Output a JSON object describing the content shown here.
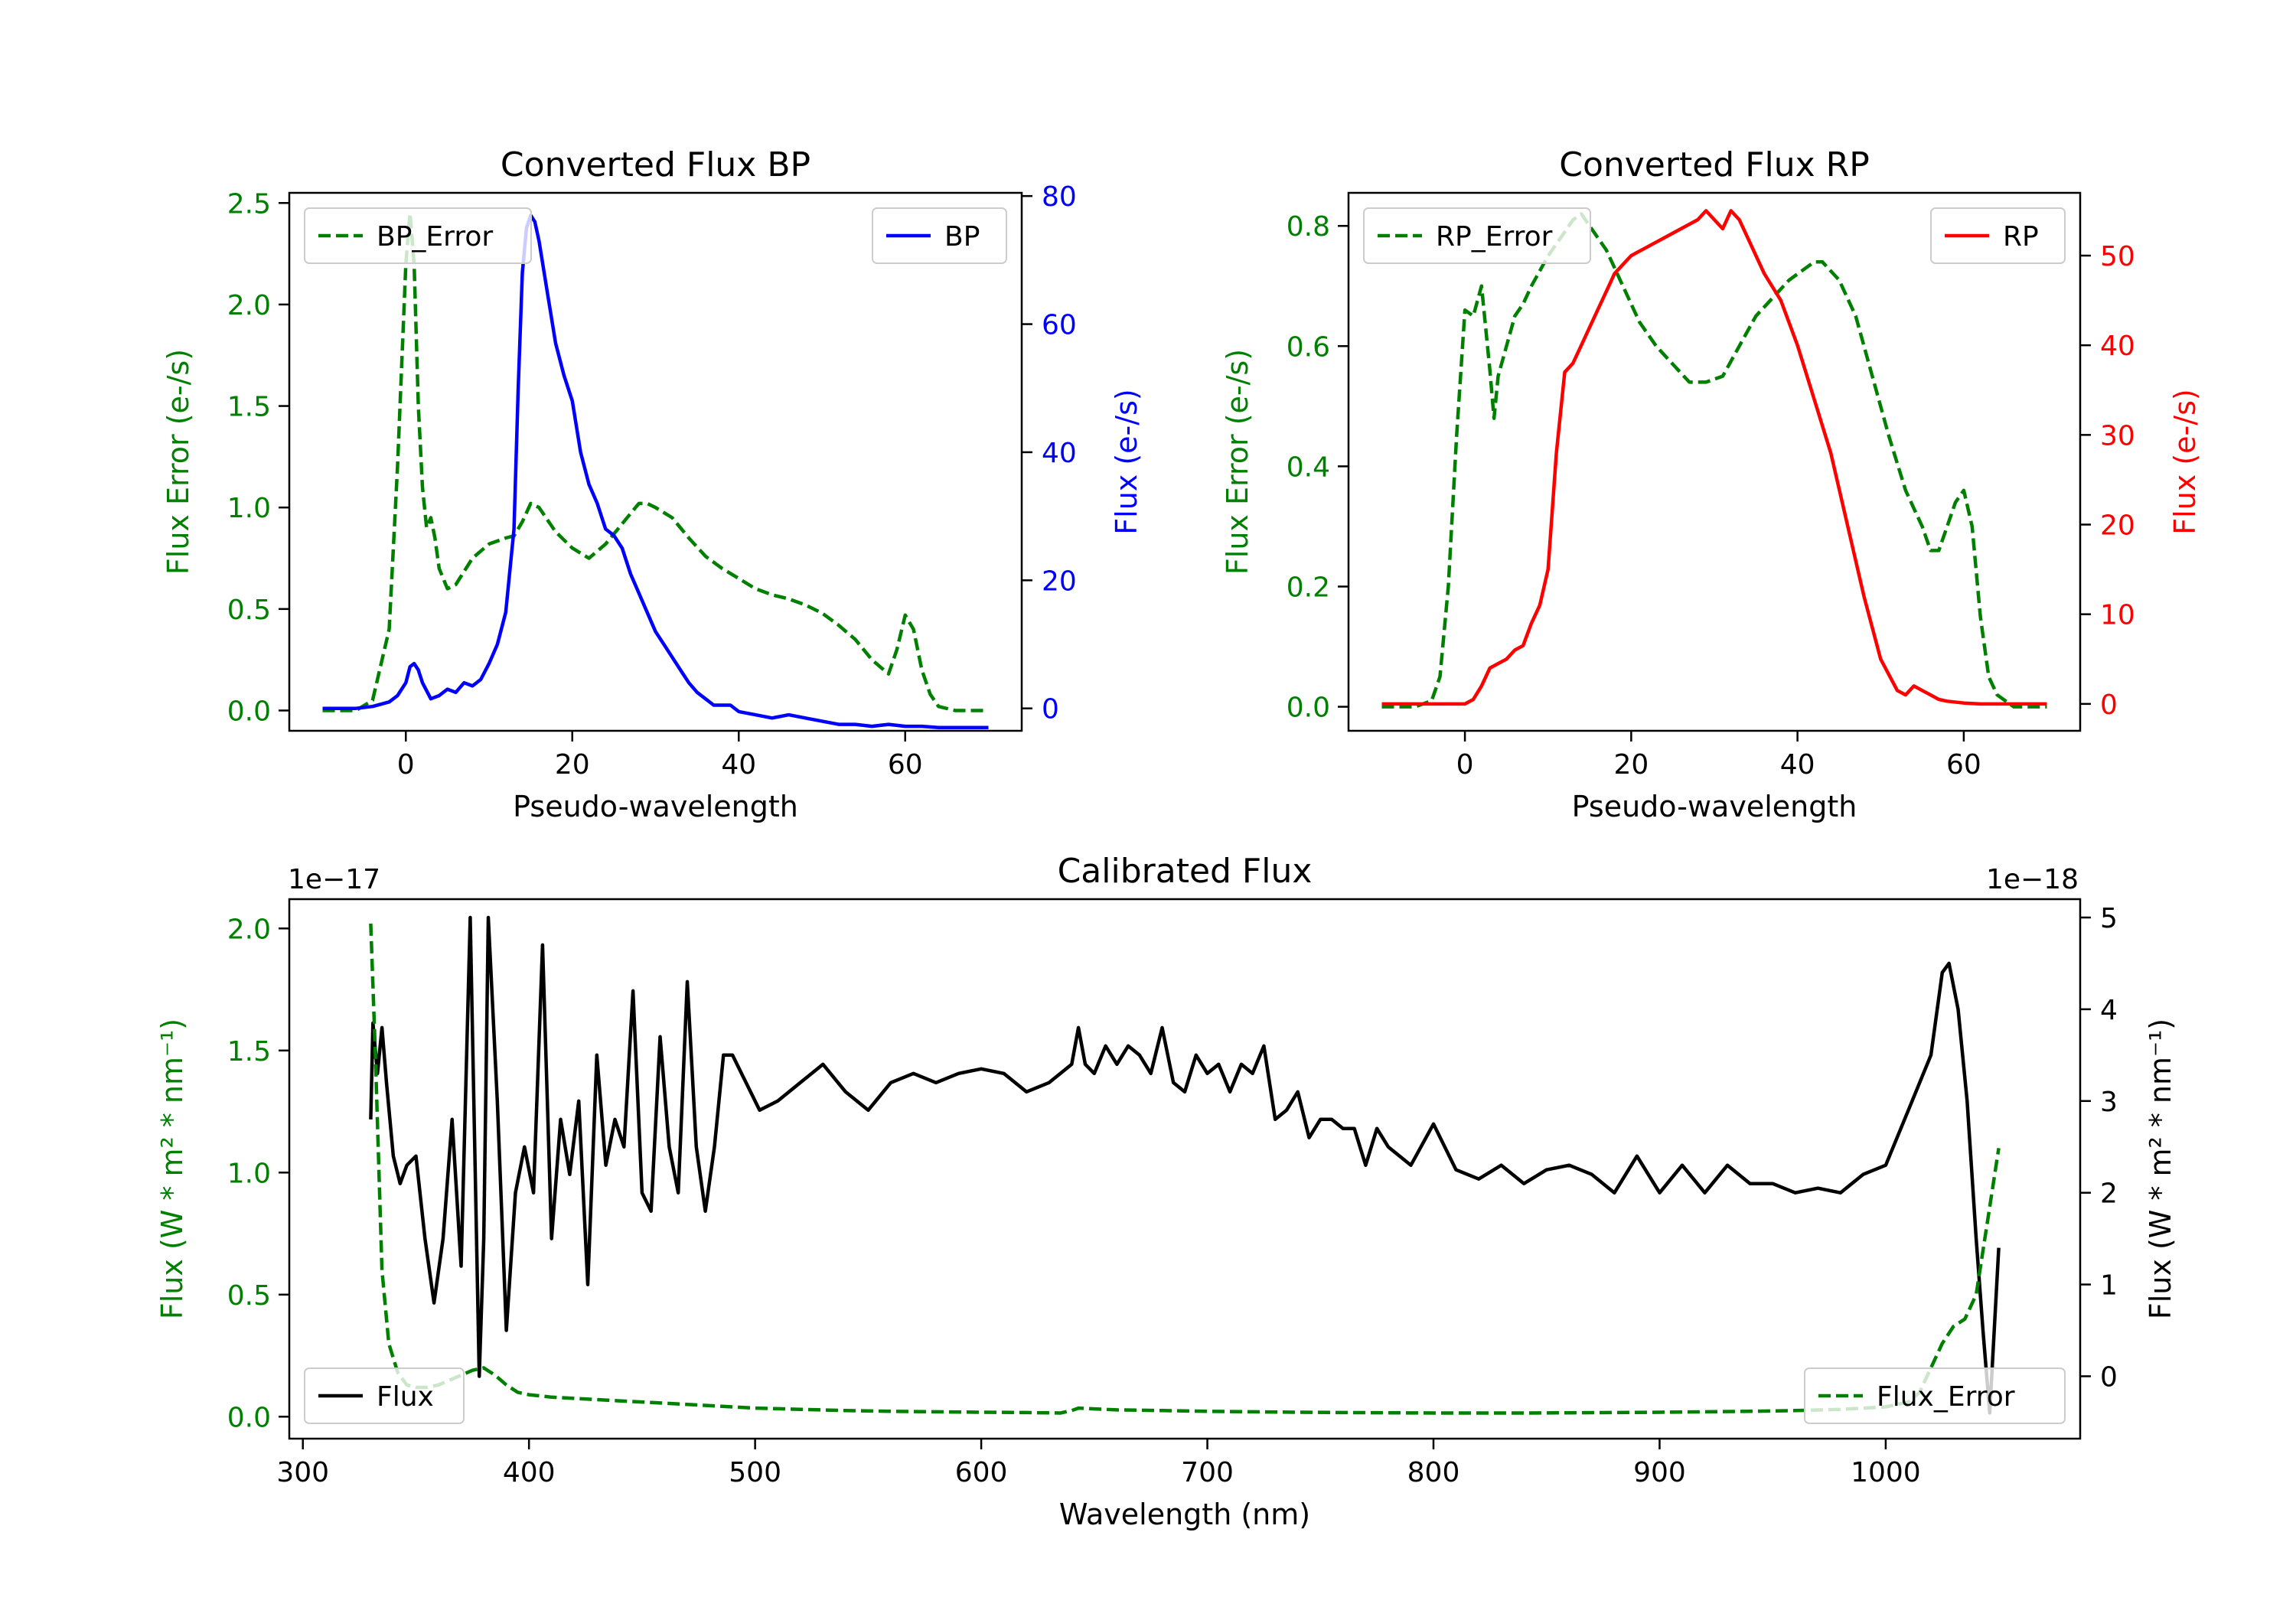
{
  "colors": {
    "error": "#008000",
    "bp": "#0000ff",
    "rp": "#ff0000",
    "flux": "#000000",
    "axis": "#000000"
  },
  "chart_data": [
    {
      "id": "bp",
      "type": "line",
      "title": "Converted Flux BP",
      "xlabel": "Pseudo-wavelength",
      "ylabel_left": "Flux Error (e-/s)",
      "ylabel_right": "Flux (e-/s)",
      "xlim": [
        -14,
        74
      ],
      "ylim_left": [
        -0.1,
        2.55
      ],
      "ylim_right": [
        -3.5,
        80.5
      ],
      "xticks": [
        0,
        20,
        40,
        60
      ],
      "yticks_left": [
        0.0,
        0.5,
        1.0,
        1.5,
        2.0,
        2.5
      ],
      "yticks_right": [
        0,
        20,
        40,
        60,
        80
      ],
      "legend_left": {
        "label": "BP_Error",
        "position": "top-left"
      },
      "legend_right": {
        "label": "BP",
        "position": "top-right"
      },
      "series": [
        {
          "name": "BP_Error",
          "axis": "left",
          "color": "#008000",
          "style": "dashed",
          "x": [
            -10,
            -6,
            -4,
            -2,
            -1,
            0,
            0.5,
            1,
            1.5,
            2,
            2.5,
            3,
            3.5,
            4,
            5,
            6,
            8,
            10,
            12,
            13,
            14,
            15,
            16,
            18,
            20,
            22,
            24,
            26,
            27,
            28,
            29,
            30,
            32,
            34,
            36,
            38,
            40,
            42,
            44,
            46,
            48,
            50,
            52,
            54,
            56,
            58,
            59,
            60,
            61,
            62,
            63,
            64,
            66,
            70
          ],
          "y": [
            0,
            0,
            0.05,
            0.4,
            1.2,
            2.2,
            2.45,
            2.2,
            1.5,
            1.1,
            0.9,
            0.95,
            0.85,
            0.7,
            0.6,
            0.62,
            0.75,
            0.82,
            0.85,
            0.86,
            0.93,
            1.02,
            1.0,
            0.88,
            0.8,
            0.75,
            0.82,
            0.92,
            0.97,
            1.02,
            1.02,
            1.0,
            0.95,
            0.85,
            0.76,
            0.7,
            0.65,
            0.6,
            0.57,
            0.55,
            0.52,
            0.48,
            0.42,
            0.35,
            0.25,
            0.18,
            0.3,
            0.47,
            0.4,
            0.2,
            0.08,
            0.02,
            0,
            0
          ]
        },
        {
          "name": "BP",
          "axis": "right",
          "color": "#0000ff",
          "style": "solid",
          "x": [
            -10,
            -6,
            -4,
            -2,
            -1,
            0,
            0.5,
            1,
            1.5,
            2,
            3,
            4,
            5,
            6,
            7,
            8,
            9,
            10,
            11,
            12,
            13,
            13.5,
            14,
            14.5,
            15,
            15.5,
            16,
            17,
            18,
            19,
            20,
            21,
            22,
            23,
            24,
            25,
            26,
            27,
            28,
            29,
            30,
            31,
            32,
            33,
            34,
            35,
            36,
            37,
            38,
            39,
            40,
            42,
            44,
            46,
            48,
            50,
            52,
            54,
            56,
            58,
            60,
            62,
            64,
            66,
            70
          ],
          "y": [
            0,
            0,
            0.3,
            1,
            2,
            4,
            6.5,
            7,
            6,
            4,
            1.5,
            2,
            3,
            2.5,
            4,
            3.5,
            4.5,
            7,
            10,
            15,
            28,
            50,
            68,
            75,
            77,
            76,
            73,
            65,
            57,
            52,
            48,
            40,
            35,
            32,
            28,
            27,
            25,
            21,
            18,
            15,
            12,
            10,
            8,
            6,
            4,
            2.5,
            1.5,
            0.5,
            0.5,
            0.5,
            -0.5,
            -1,
            -1.5,
            -1,
            -1.5,
            -2,
            -2.5,
            -2.5,
            -2.8,
            -2.5,
            -2.8,
            -2.8,
            -3,
            -3,
            -3
          ]
        }
      ]
    },
    {
      "id": "rp",
      "type": "line",
      "title": "Converted Flux RP",
      "xlabel": "Pseudo-wavelength",
      "ylabel_left": "Flux Error (e-/s)",
      "ylabel_right": "Flux (e-/s)",
      "xlim": [
        -14,
        74
      ],
      "ylim_left": [
        -0.04,
        0.855
      ],
      "ylim_right": [
        -3,
        57
      ],
      "xticks": [
        0,
        20,
        40,
        60
      ],
      "yticks_left": [
        0.0,
        0.2,
        0.4,
        0.6,
        0.8
      ],
      "yticks_right": [
        0,
        10,
        20,
        30,
        40,
        50
      ],
      "legend_left": {
        "label": "RP_Error",
        "position": "top-left"
      },
      "legend_right": {
        "label": "RP",
        "position": "top-right"
      },
      "series": [
        {
          "name": "RP_Error",
          "axis": "left",
          "color": "#008000",
          "style": "dashed",
          "x": [
            -10,
            -6,
            -4,
            -3,
            -2,
            -1,
            0,
            1,
            2,
            3,
            3.5,
            4,
            5,
            6,
            7,
            8,
            10,
            12,
            13,
            14,
            15,
            17,
            19,
            21,
            23,
            25,
            27,
            29,
            31,
            33,
            35,
            37,
            39,
            41,
            42,
            43,
            45,
            47,
            49,
            51,
            53,
            54,
            55,
            56,
            57,
            58,
            59,
            60,
            61,
            62,
            63,
            64,
            66,
            70
          ],
          "y": [
            0,
            0,
            0.01,
            0.05,
            0.2,
            0.45,
            0.66,
            0.65,
            0.7,
            0.56,
            0.48,
            0.55,
            0.6,
            0.65,
            0.67,
            0.7,
            0.75,
            0.79,
            0.81,
            0.82,
            0.8,
            0.76,
            0.7,
            0.64,
            0.6,
            0.57,
            0.54,
            0.54,
            0.55,
            0.6,
            0.65,
            0.68,
            0.71,
            0.73,
            0.74,
            0.74,
            0.71,
            0.65,
            0.55,
            0.45,
            0.36,
            0.33,
            0.3,
            0.26,
            0.26,
            0.3,
            0.34,
            0.36,
            0.3,
            0.15,
            0.05,
            0.02,
            0,
            0
          ]
        },
        {
          "name": "RP",
          "axis": "right",
          "color": "#ff0000",
          "style": "solid",
          "x": [
            -10,
            -4,
            -2,
            0,
            1,
            2,
            3,
            4,
            5,
            6,
            7,
            8,
            9,
            10,
            11,
            12,
            13,
            14,
            15,
            16,
            17,
            18,
            19,
            20,
            22,
            24,
            26,
            28,
            29,
            30,
            31,
            32,
            33,
            34,
            36,
            38,
            40,
            42,
            44,
            46,
            48,
            50,
            52,
            53,
            54,
            55,
            56,
            57,
            58,
            60,
            62,
            64,
            66,
            70
          ],
          "y": [
            0,
            0,
            0,
            0,
            0.5,
            2,
            4,
            4.5,
            5,
            6,
            6.5,
            9,
            11,
            15,
            28,
            37,
            38,
            40,
            42,
            44,
            46,
            48,
            49,
            50,
            51,
            52,
            53,
            54,
            55,
            54,
            53,
            55,
            54,
            52,
            48,
            45,
            40,
            34,
            28,
            20,
            12,
            5,
            1.5,
            1,
            2,
            1.5,
            1,
            0.5,
            0.3,
            0.1,
            0,
            0,
            0,
            0
          ]
        }
      ]
    },
    {
      "id": "calibrated",
      "type": "line",
      "title": "Calibrated Flux",
      "xlabel": "Wavelength (nm)",
      "ylabel_left": "Flux (W * m² * nm⁻¹)",
      "ylabel_right": "Flux (W * m² * nm⁻¹)",
      "offset_left": "1e−17",
      "offset_right": "1e−18",
      "xlim": [
        294,
        1086
      ],
      "ylim_left": [
        -0.09,
        2.12
      ],
      "ylim_right": [
        -0.68,
        5.2
      ],
      "xticks": [
        300,
        400,
        500,
        600,
        700,
        800,
        900,
        1000
      ],
      "yticks_left": [
        0.0,
        0.5,
        1.0,
        1.5,
        2.0
      ],
      "yticks_right": [
        0,
        1,
        2,
        3,
        4,
        5
      ],
      "legend_left": {
        "label": "Flux",
        "position": "bottom-left"
      },
      "legend_right": {
        "label": "Flux_Error",
        "position": "bottom-right"
      },
      "series": [
        {
          "name": "Flux",
          "axis": "right",
          "color": "#000000",
          "style": "solid",
          "x": [
            330,
            331,
            333,
            335,
            337,
            340,
            343,
            346,
            350,
            354,
            358,
            362,
            366,
            370,
            374,
            378,
            380,
            382,
            386,
            390,
            394,
            398,
            402,
            406,
            410,
            414,
            418,
            422,
            426,
            430,
            434,
            438,
            442,
            446,
            450,
            454,
            458,
            462,
            466,
            470,
            474,
            478,
            482,
            486,
            490,
            496,
            502,
            510,
            520,
            530,
            540,
            550,
            560,
            570,
            580,
            590,
            600,
            610,
            620,
            630,
            640,
            643,
            646,
            650,
            655,
            660,
            665,
            670,
            675,
            680,
            685,
            690,
            695,
            700,
            705,
            710,
            715,
            720,
            725,
            730,
            735,
            740,
            745,
            750,
            755,
            760,
            765,
            770,
            775,
            780,
            790,
            800,
            810,
            820,
            830,
            840,
            850,
            860,
            870,
            880,
            890,
            900,
            910,
            920,
            930,
            940,
            950,
            960,
            970,
            980,
            990,
            1000,
            1010,
            1020,
            1025,
            1028,
            1032,
            1036,
            1040,
            1043,
            1046,
            1048,
            1050
          ],
          "y": [
            2.8,
            3.85,
            3.3,
            3.8,
            3.2,
            2.4,
            2.1,
            2.3,
            2.4,
            1.5,
            0.8,
            1.5,
            2.8,
            1.2,
            5,
            0,
            1.5,
            5,
            3,
            0.5,
            2,
            2.5,
            2,
            4.7,
            1.5,
            2.8,
            2.2,
            3,
            1,
            3.5,
            2.3,
            2.8,
            2.5,
            4.2,
            2,
            1.8,
            3.7,
            2.5,
            2,
            4.3,
            2.5,
            1.8,
            2.5,
            3.5,
            3.5,
            3.2,
            2.9,
            3,
            3.2,
            3.4,
            3.1,
            2.9,
            3.2,
            3.3,
            3.2,
            3.3,
            3.35,
            3.3,
            3.1,
            3.2,
            3.4,
            3.8,
            3.4,
            3.3,
            3.6,
            3.4,
            3.6,
            3.5,
            3.3,
            3.8,
            3.2,
            3.1,
            3.5,
            3.3,
            3.4,
            3.1,
            3.4,
            3.3,
            3.6,
            2.8,
            2.9,
            3.1,
            2.6,
            2.8,
            2.8,
            2.7,
            2.7,
            2.3,
            2.7,
            2.5,
            2.3,
            2.75,
            2.25,
            2.15,
            2.3,
            2.1,
            2.25,
            2.3,
            2.2,
            2.0,
            2.4,
            2.0,
            2.3,
            2.0,
            2.3,
            2.1,
            2.1,
            2.0,
            2.05,
            2.0,
            2.2,
            2.3,
            2.9,
            3.5,
            4.4,
            4.5,
            4,
            3,
            1.5,
            0.5,
            -0.4,
            0.5,
            1.4
          ]
        },
        {
          "name": "Flux_Error",
          "axis": "left",
          "color": "#008000",
          "style": "dashed",
          "x": [
            330,
            332,
            335,
            338,
            342,
            346,
            350,
            355,
            360,
            365,
            370,
            375,
            380,
            385,
            390,
            395,
            400,
            410,
            420,
            430,
            440,
            450,
            460,
            470,
            480,
            490,
            500,
            520,
            540,
            560,
            580,
            600,
            620,
            635,
            640,
            643,
            650,
            660,
            680,
            700,
            720,
            740,
            760,
            780,
            800,
            820,
            840,
            860,
            880,
            900,
            920,
            940,
            960,
            980,
            1000,
            1010,
            1015,
            1020,
            1025,
            1030,
            1035,
            1040,
            1045,
            1050
          ],
          "y": [
            2.02,
            1.5,
            0.6,
            0.3,
            0.18,
            0.13,
            0.12,
            0.12,
            0.13,
            0.15,
            0.17,
            0.19,
            0.2,
            0.17,
            0.13,
            0.1,
            0.09,
            0.08,
            0.075,
            0.07,
            0.065,
            0.06,
            0.055,
            0.05,
            0.045,
            0.04,
            0.035,
            0.03,
            0.025,
            0.022,
            0.02,
            0.018,
            0.017,
            0.015,
            0.025,
            0.035,
            0.032,
            0.028,
            0.025,
            0.022,
            0.02,
            0.018,
            0.017,
            0.016,
            0.015,
            0.015,
            0.015,
            0.016,
            0.017,
            0.018,
            0.02,
            0.022,
            0.025,
            0.03,
            0.04,
            0.06,
            0.1,
            0.2,
            0.3,
            0.37,
            0.4,
            0.5,
            0.8,
            1.1
          ]
        }
      ]
    }
  ]
}
